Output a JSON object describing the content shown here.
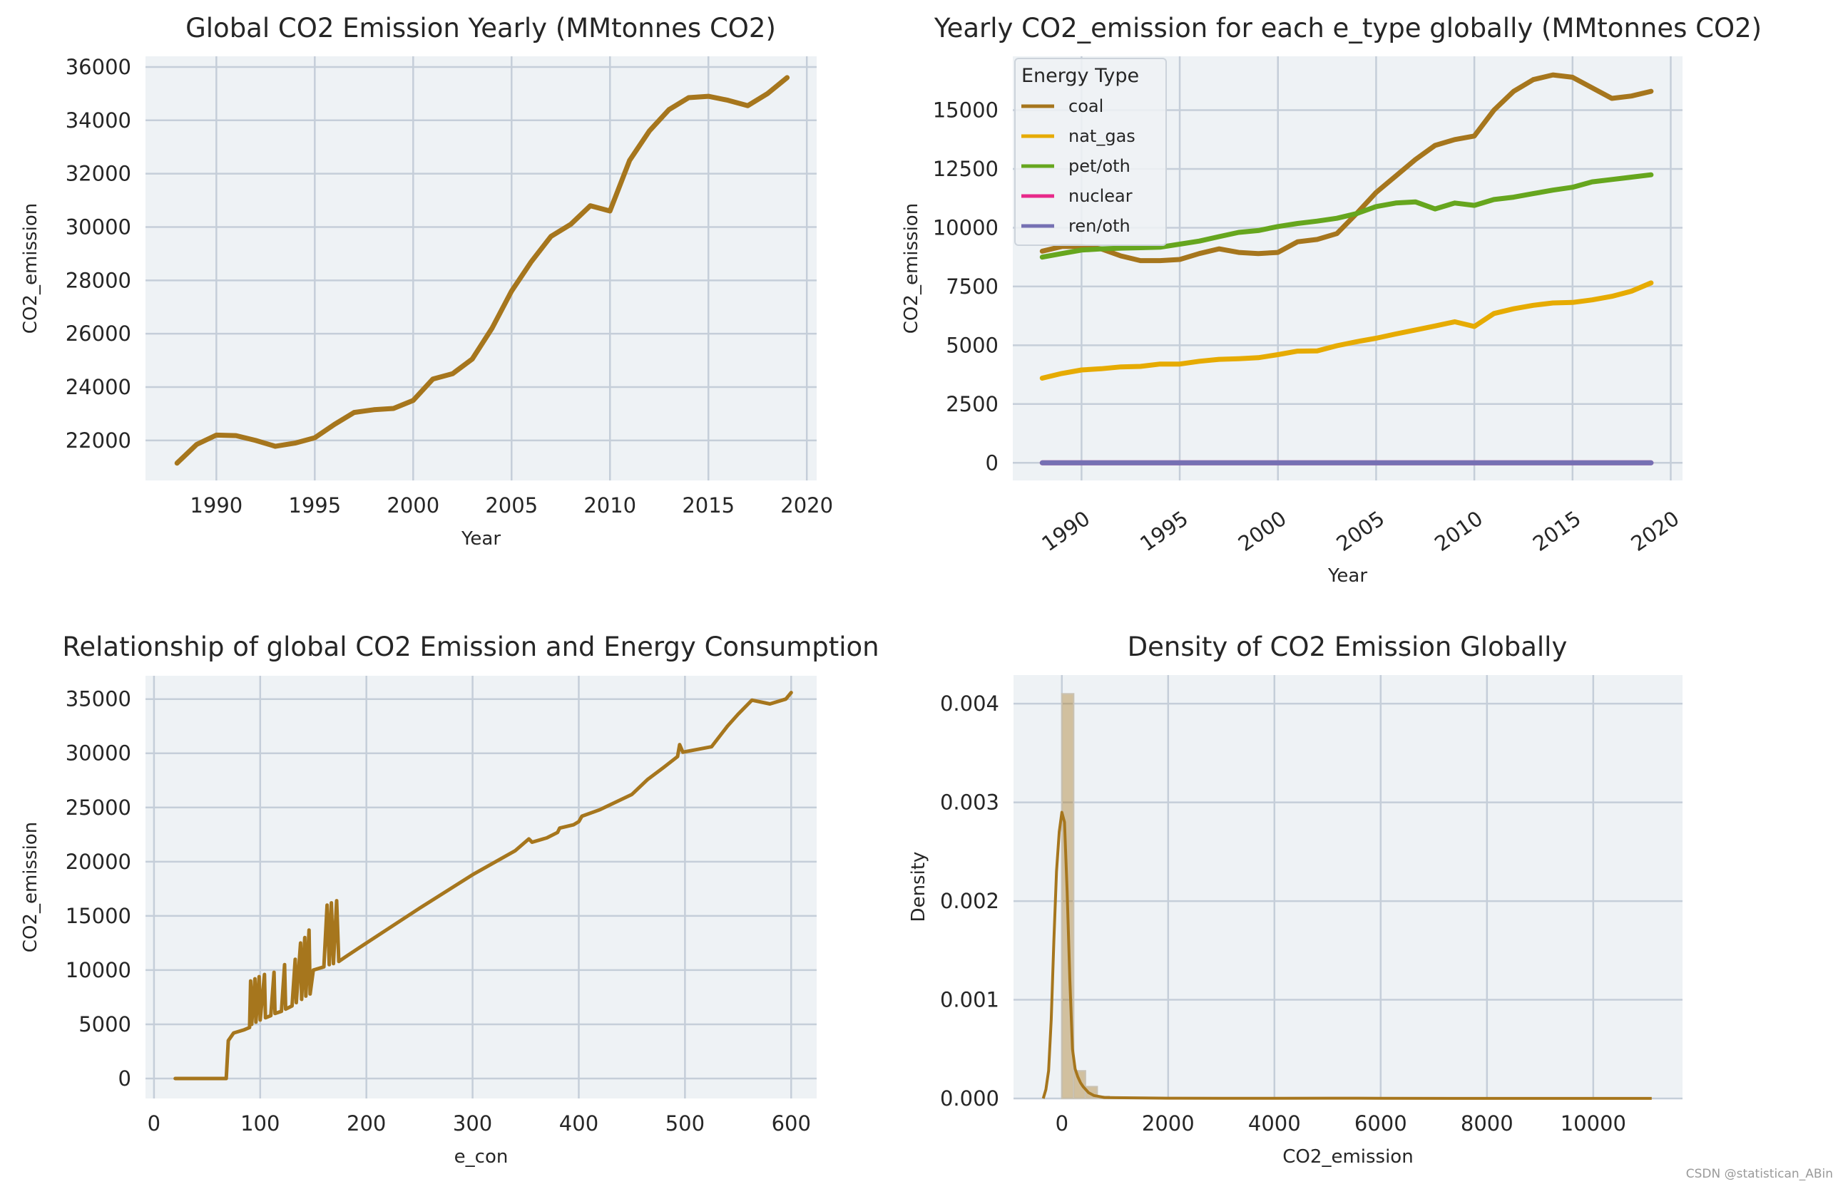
{
  "watermark": "CSDN @statistican_ABin",
  "colors": {
    "coal": "#a6761d",
    "nat_gas": "#e6ab02",
    "pet/oth": "#66a61e",
    "nuclear": "#e7298a",
    "ren/oth": "#7570b3",
    "background": "#eef2f5",
    "grid": "#c5ced9"
  },
  "chart_data": [
    {
      "type": "line",
      "title": "Global CO2 Emission Yearly (MMtonnes CO2)",
      "xlabel": "Year",
      "ylabel": "CO2_emission",
      "xlim": [
        1986.4,
        2020.5
      ],
      "ylim": [
        20500,
        36400
      ],
      "xticks": [
        1990,
        1995,
        2000,
        2005,
        2010,
        2015,
        2020
      ],
      "yticks": [
        22000,
        24000,
        26000,
        28000,
        30000,
        32000,
        34000,
        36000
      ],
      "grid": true,
      "x": [
        1988,
        1989,
        1990,
        1991,
        1992,
        1993,
        1994,
        1995,
        1996,
        1997,
        1998,
        1999,
        2000,
        2001,
        2002,
        2003,
        2004,
        2005,
        2006,
        2007,
        2008,
        2009,
        2010,
        2011,
        2012,
        2013,
        2014,
        2015,
        2016,
        2017,
        2018,
        2019
      ],
      "series": [
        {
          "color": "#a6761d",
          "values": [
            21150,
            21850,
            22200,
            22180,
            22000,
            21780,
            21900,
            22100,
            22600,
            23050,
            23150,
            23200,
            23500,
            24300,
            24500,
            25050,
            26200,
            27600,
            28700,
            29650,
            30100,
            30800,
            30600,
            32500,
            33600,
            34400,
            34850,
            34900,
            34750,
            34550,
            35000,
            35600
          ]
        }
      ]
    },
    {
      "type": "line",
      "title": "Yearly CO2_emission for each e_type globally (MMtonnes CO2)",
      "xlabel": "Year",
      "ylabel": "CO2_emission",
      "xlim": [
        1986.5,
        2020.6
      ],
      "ylim": [
        -750,
        17290
      ],
      "xticks": [
        1990,
        1995,
        2000,
        2005,
        2010,
        2015,
        2020
      ],
      "xtick_rotation": 35,
      "yticks": [
        0,
        2500,
        5000,
        7500,
        10000,
        12500,
        15000
      ],
      "grid": true,
      "legend": {
        "title": "Energy Type",
        "placement": "upper-left"
      },
      "x": [
        1988,
        1989,
        1990,
        1991,
        1992,
        1993,
        1994,
        1995,
        1996,
        1997,
        1998,
        1999,
        2000,
        2001,
        2002,
        2003,
        2004,
        2005,
        2006,
        2007,
        2008,
        2009,
        2010,
        2011,
        2012,
        2013,
        2014,
        2015,
        2016,
        2017,
        2018,
        2019
      ],
      "series": [
        {
          "name": "coal",
          "color": "#a6761d",
          "values": [
            9000,
            9200,
            9200,
            9100,
            8800,
            8600,
            8600,
            8650,
            8900,
            9100,
            8950,
            8900,
            8950,
            9400,
            9500,
            9750,
            10600,
            11500,
            12200,
            12900,
            13500,
            13750,
            13900,
            15000,
            15800,
            16300,
            16500,
            16400,
            15950,
            15500,
            15600,
            15800
          ]
        },
        {
          "name": "nat_gas",
          "color": "#e6ab02",
          "values": [
            3600,
            3800,
            3950,
            4000,
            4080,
            4100,
            4200,
            4200,
            4320,
            4400,
            4430,
            4470,
            4600,
            4750,
            4760,
            4980,
            5150,
            5300,
            5480,
            5650,
            5820,
            6000,
            5800,
            6350,
            6550,
            6700,
            6800,
            6820,
            6930,
            7080,
            7300,
            7650
          ]
        },
        {
          "name": "pet/oth",
          "color": "#66a61e",
          "values": [
            8750,
            8900,
            9050,
            9100,
            9130,
            9150,
            9170,
            9300,
            9430,
            9620,
            9800,
            9880,
            10050,
            10180,
            10280,
            10400,
            10600,
            10900,
            11050,
            11100,
            10800,
            11050,
            10950,
            11200,
            11300,
            11450,
            11600,
            11720,
            11950,
            12050,
            12150,
            12250
          ]
        },
        {
          "name": "nuclear",
          "color": "#e7298a",
          "values": [
            0,
            0,
            0,
            0,
            0,
            0,
            0,
            0,
            0,
            0,
            0,
            0,
            0,
            0,
            0,
            0,
            0,
            0,
            0,
            0,
            0,
            0,
            0,
            0,
            0,
            0,
            0,
            0,
            0,
            0,
            0,
            0
          ]
        },
        {
          "name": "ren/oth",
          "color": "#7570b3",
          "values": [
            0,
            0,
            0,
            0,
            0,
            0,
            0,
            0,
            0,
            0,
            0,
            0,
            0,
            0,
            0,
            0,
            0,
            0,
            0,
            0,
            0,
            0,
            0,
            0,
            0,
            0,
            0,
            0,
            0,
            0,
            0,
            0
          ]
        }
      ]
    },
    {
      "type": "line",
      "title": "Relationship of global CO2 Emission and Energy Consumption",
      "xlabel": "e_con",
      "ylabel": "CO2_emission",
      "xlim": [
        -8,
        624
      ],
      "ylim": [
        -1840,
        37150
      ],
      "xticks": [
        0,
        100,
        200,
        300,
        400,
        500,
        600
      ],
      "yticks": [
        0,
        5000,
        10000,
        15000,
        20000,
        25000,
        30000,
        35000
      ],
      "grid": true,
      "series": [
        {
          "color": "#a6761d",
          "x": [
            20,
            68,
            70,
            75,
            85,
            90,
            91,
            92,
            95,
            96,
            99,
            100,
            104,
            105,
            110,
            113,
            114,
            120,
            123,
            124,
            130,
            133,
            134,
            138,
            139,
            142,
            143,
            146,
            147,
            150,
            160,
            163,
            165,
            167,
            169,
            172,
            174,
            180,
            200,
            250,
            300,
            340,
            353,
            356,
            370,
            380,
            382,
            395,
            400,
            403,
            420,
            450,
            465,
            480,
            493,
            495,
            498,
            525,
            540,
            550,
            563,
            580,
            595,
            600
          ],
          "values": [
            0,
            0,
            3500,
            4200,
            4500,
            4700,
            9000,
            5000,
            9200,
            5200,
            9400,
            5400,
            9600,
            5600,
            5800,
            9800,
            6000,
            6200,
            10500,
            6400,
            6700,
            11000,
            7000,
            12500,
            7300,
            13000,
            7600,
            13700,
            7800,
            10000,
            10300,
            16000,
            10500,
            16200,
            10600,
            16400,
            10800,
            11200,
            12500,
            15700,
            18800,
            21000,
            22100,
            21800,
            22200,
            22700,
            23100,
            23400,
            23700,
            24200,
            24800,
            26200,
            27600,
            28700,
            29700,
            30800,
            30100,
            30600,
            32500,
            33600,
            34900,
            34550,
            35000,
            35600
          ]
        }
      ]
    },
    {
      "type": "histogram",
      "title": "Density of CO2 Emission Globally",
      "xlabel": "CO2_emission",
      "ylabel": "Density",
      "xlim": [
        -910,
        11680
      ],
      "ylim": [
        0,
        0.00429
      ],
      "xticks": [
        0,
        2000,
        4000,
        6000,
        8000,
        10000
      ],
      "yticks": [
        0.0,
        0.001,
        0.002,
        0.003,
        0.004
      ],
      "ytick_labels": [
        "0.000",
        "0.001",
        "0.002",
        "0.003",
        "0.004"
      ],
      "grid": true,
      "bins": [
        [
          0,
          222,
          0.0041
        ],
        [
          222,
          444,
          0.00028
        ],
        [
          444,
          666,
          0.00012
        ],
        [
          666,
          888,
          2e-05
        ],
        [
          888,
          1110,
          1e-05
        ]
      ],
      "bar_color": "#a6761d",
      "kde": {
        "color": "#a6761d",
        "x": [
          -350,
          -300,
          -250,
          -200,
          -150,
          -100,
          -50,
          0,
          50,
          100,
          150,
          200,
          250,
          300,
          350,
          400,
          500,
          600,
          700,
          800,
          1000,
          1500,
          2000,
          3000,
          4000,
          5000,
          6000,
          8000,
          10000,
          11100
        ],
        "values": [
          0,
          9e-05,
          0.00028,
          0.0008,
          0.0016,
          0.0023,
          0.0027,
          0.0029,
          0.0028,
          0.0021,
          0.0012,
          0.0005,
          0.0003,
          0.00022,
          0.00016,
          0.00012,
          6e-05,
          3e-05,
          2e-05,
          1e-05,
          8e-06,
          6e-06,
          3e-06,
          2e-06,
          2e-06,
          3e-06,
          2e-06,
          1e-06,
          1e-06,
          1e-06
        ]
      }
    }
  ]
}
